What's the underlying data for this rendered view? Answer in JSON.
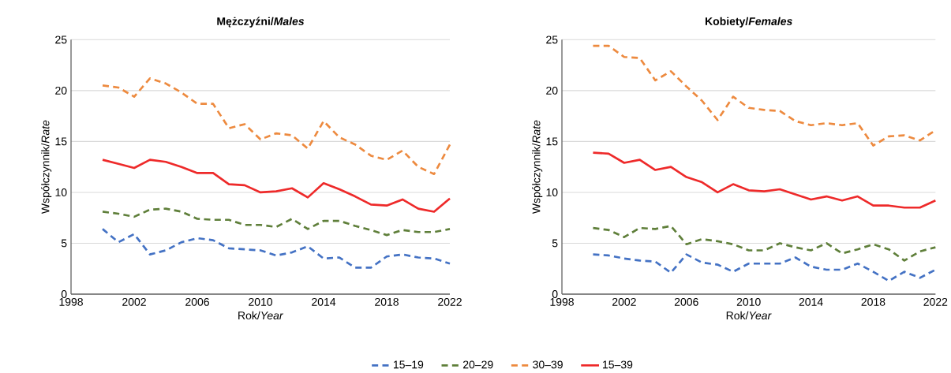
{
  "chart_data": [
    {
      "type": "line",
      "title": "Mężczyźni/*Males*",
      "xlabel": "Rok/*Year*",
      "ylabel": "Współczynnik/*Rate*",
      "x": [
        2000,
        2001,
        2002,
        2003,
        2004,
        2005,
        2006,
        2007,
        2008,
        2009,
        2010,
        2011,
        2012,
        2013,
        2014,
        2015,
        2016,
        2017,
        2018,
        2019,
        2020,
        2021,
        2022
      ],
      "xlim": [
        1998,
        2022
      ],
      "xticks": [
        1998,
        2002,
        2006,
        2010,
        2014,
        2018,
        2022
      ],
      "ylim": [
        0,
        25
      ],
      "yticks": [
        0,
        5,
        10,
        15,
        20,
        25
      ],
      "grid": "y",
      "legend": "bottom",
      "series": [
        {
          "name": "15–19",
          "color": "#4472c4",
          "line_style": "dashed",
          "values": [
            6.4,
            5.1,
            5.9,
            3.9,
            4.3,
            5.1,
            5.5,
            5.3,
            4.5,
            4.4,
            4.3,
            3.8,
            4.1,
            4.7,
            3.5,
            3.6,
            2.6,
            2.6,
            3.7,
            3.9,
            3.6,
            3.5,
            3.0
          ]
        },
        {
          "name": "20–29",
          "color": "#5f7f3a",
          "line_style": "dashed",
          "values": [
            8.1,
            7.9,
            7.6,
            8.3,
            8.4,
            8.1,
            7.4,
            7.3,
            7.3,
            6.8,
            6.8,
            6.6,
            7.4,
            6.4,
            7.2,
            7.2,
            6.7,
            6.3,
            5.8,
            6.3,
            6.1,
            6.1,
            6.4
          ]
        },
        {
          "name": "30–39",
          "color": "#ed8a3f",
          "line_style": "dashed",
          "values": [
            20.5,
            20.3,
            19.4,
            21.2,
            20.7,
            19.8,
            18.7,
            18.7,
            16.3,
            16.7,
            15.2,
            15.8,
            15.6,
            14.3,
            17.0,
            15.4,
            14.7,
            13.6,
            13.2,
            14.1,
            12.5,
            11.8,
            14.7
          ]
        },
        {
          "name": "15–39",
          "color": "#ee2a2a",
          "line_style": "solid",
          "values": [
            13.2,
            12.8,
            12.4,
            13.2,
            13.0,
            12.5,
            11.9,
            11.9,
            10.8,
            10.7,
            10.0,
            10.1,
            10.4,
            9.5,
            10.9,
            10.3,
            9.6,
            8.8,
            8.7,
            9.3,
            8.4,
            8.1,
            9.4
          ]
        }
      ]
    },
    {
      "type": "line",
      "title": "Kobiety/*Females*",
      "xlabel": "Rok/*Year*",
      "ylabel": "Współczynnik/*Rate*",
      "x": [
        2000,
        2001,
        2002,
        2003,
        2004,
        2005,
        2006,
        2007,
        2008,
        2009,
        2010,
        2011,
        2012,
        2013,
        2014,
        2015,
        2016,
        2017,
        2018,
        2019,
        2020,
        2021,
        2022
      ],
      "xlim": [
        1998,
        2022
      ],
      "xticks": [
        1998,
        2002,
        2006,
        2010,
        2014,
        2018,
        2022
      ],
      "ylim": [
        0,
        25
      ],
      "yticks": [
        0,
        5,
        10,
        15,
        20,
        25
      ],
      "grid": "y",
      "series": [
        {
          "color": "#4472c4",
          "line_style": "dashed",
          "values": [
            3.9,
            3.8,
            3.5,
            3.3,
            3.2,
            2.1,
            3.9,
            3.1,
            2.9,
            2.2,
            3.0,
            3.0,
            3.0,
            3.6,
            2.7,
            2.4,
            2.4,
            3.0,
            2.2,
            1.3,
            2.2,
            1.6,
            2.4
          ]
        },
        {
          "color": "#5f7f3a",
          "line_style": "dashed",
          "values": [
            6.5,
            6.3,
            5.6,
            6.5,
            6.4,
            6.7,
            4.9,
            5.4,
            5.2,
            4.9,
            4.3,
            4.3,
            5.0,
            4.6,
            4.3,
            5.0,
            4.0,
            4.4,
            4.9,
            4.4,
            3.3,
            4.2,
            4.6
          ]
        },
        {
          "color": "#ed8a3f",
          "line_style": "dashed",
          "values": [
            24.4,
            24.4,
            23.3,
            23.2,
            21.0,
            21.9,
            20.4,
            19.0,
            17.1,
            19.4,
            18.3,
            18.1,
            18.0,
            17.0,
            16.6,
            16.8,
            16.6,
            16.8,
            14.6,
            15.5,
            15.6,
            15.1,
            16.1
          ]
        },
        {
          "color": "#ee2a2a",
          "line_style": "solid",
          "values": [
            13.9,
            13.8,
            12.9,
            13.2,
            12.2,
            12.5,
            11.5,
            11.0,
            10.0,
            10.8,
            10.2,
            10.1,
            10.3,
            9.8,
            9.3,
            9.6,
            9.2,
            9.6,
            8.7,
            8.7,
            8.5,
            8.5,
            9.2
          ]
        }
      ]
    }
  ]
}
